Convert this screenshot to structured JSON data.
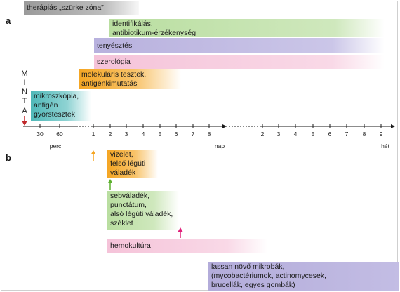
{
  "section_labels": {
    "a": "a",
    "b": "b"
  },
  "minta_letters": [
    "M",
    "I",
    "N",
    "T",
    "A"
  ],
  "bars_a": {
    "gray_zone": "therápiás „szürke zóna”",
    "identify_l1": "identifikálás,",
    "identify_l2": "antibiotikum-érzékenység",
    "culture": "tenyésztés",
    "serology": "szerológia",
    "molecular_l1": "molekuláris tesztek,",
    "molecular_l2": "antigénkimutatás",
    "micro_l1": "mikroszkópia,",
    "micro_l2": "antigén",
    "micro_l3": "gyorstesztek"
  },
  "bars_b": {
    "urine_l1": "vizelet,",
    "urine_l2": "felső légúti",
    "urine_l3": "váladék",
    "wound_l1": "sebváladék,",
    "wound_l2": "punctátum,",
    "wound_l3": "alsó légúti váladék,",
    "wound_l4": "széklet",
    "blood": "hemokultúra",
    "slow_l1": "lassan növő mikrobák,",
    "slow_l2": "(mycobactériumok, actinomycesek,",
    "slow_l3": "brucellák, egyes gombák)"
  },
  "axis": {
    "ticks": [
      "30",
      "60",
      "1",
      "2",
      "3",
      "4",
      "5",
      "6",
      "7",
      "8",
      "2",
      "3",
      "4",
      "5",
      "6",
      "7",
      "8",
      "9"
    ],
    "units": {
      "minutes": "perc",
      "days": "nap",
      "weeks": "hét"
    }
  },
  "colors": {
    "gray_zone": "#9a9a9a",
    "identify": "#bfe0a8",
    "culture": "#bdb6e0",
    "serology": "#f6c7dc",
    "molecular": "#f5a623",
    "micro": "#4fb8b8",
    "urine": "#f5a623",
    "wound": "#bfe0a8",
    "blood": "#f6c7dc",
    "slow": "#b9b2dd",
    "arrow_red": "#c0282a",
    "arrow_orange": "#f5a623",
    "arrow_green": "#5cb02e",
    "arrow_pink": "#e0207a"
  }
}
